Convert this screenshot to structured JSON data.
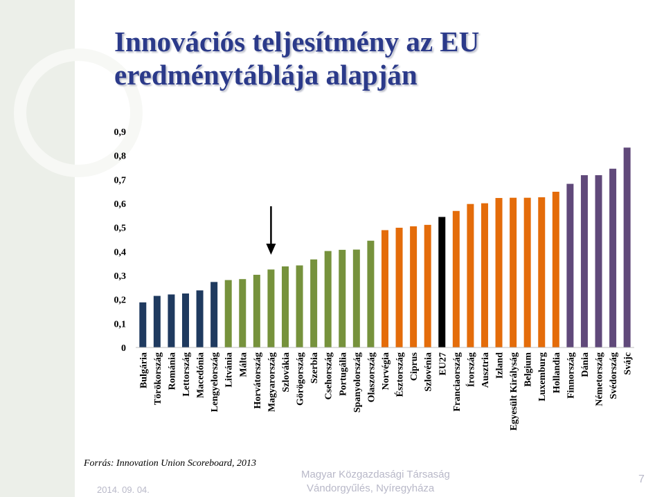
{
  "title": {
    "line1": "Innovációs teljesítmény az EU",
    "line2": "eredménytáblája alapján"
  },
  "source": "Forrás: Innovation Union Scoreboard, 2013",
  "footer": {
    "date": "2014. 09. 04.",
    "org_line1": "Magyar Közgazdasági Társaság",
    "org_line2": "Vándorgyűlés, Nyíregyháza",
    "page_number": "7"
  },
  "colors": {
    "modest": "#1f3a5f",
    "moderate": "#76923c",
    "follower": "#e46c0a",
    "leader": "#60497a",
    "eu27": "#000000",
    "arrow": "#000000"
  },
  "chart_data": {
    "type": "bar",
    "title": "",
    "xlabel": "",
    "ylabel": "",
    "ylim": [
      0,
      0.9
    ],
    "yticks": [
      "0",
      "0,1",
      "0,2",
      "0,3",
      "0,4",
      "0,5",
      "0,6",
      "0,7",
      "0,8",
      "0,9"
    ],
    "grid": false,
    "arrow_marker": "Magyarország",
    "categories": [
      "Bulgária",
      "Törökország",
      "Románia",
      "Lettország",
      "Macedónia",
      "Lengyelország",
      "Litvánia",
      "Málta",
      "Horvátország",
      "Magyarország",
      "Szlovákia",
      "Görögország",
      "Szerbia",
      "Csehország",
      "Portugália",
      "Spanyolország",
      "Olaszország",
      "Norvégia",
      "Észtország",
      "Ciprus",
      "Szlovénia",
      "EU27",
      "Franciaország",
      "Írország",
      "Ausztria",
      "Izland",
      "Egyesült Királyság",
      "Belgium",
      "Luxemburg",
      "Hollandia",
      "Finnország",
      "Dánia",
      "Németország",
      "Svédország",
      "Svájc"
    ],
    "values": [
      0.188,
      0.215,
      0.221,
      0.225,
      0.238,
      0.273,
      0.281,
      0.285,
      0.303,
      0.325,
      0.338,
      0.342,
      0.367,
      0.402,
      0.407,
      0.408,
      0.445,
      0.489,
      0.499,
      0.505,
      0.511,
      0.544,
      0.569,
      0.598,
      0.601,
      0.623,
      0.624,
      0.624,
      0.626,
      0.649,
      0.682,
      0.718,
      0.718,
      0.745,
      0.833
    ],
    "groups": [
      "modest",
      "modest",
      "modest",
      "modest",
      "modest",
      "modest",
      "moderate",
      "moderate",
      "moderate",
      "moderate",
      "moderate",
      "moderate",
      "moderate",
      "moderate",
      "moderate",
      "moderate",
      "moderate",
      "follower",
      "follower",
      "follower",
      "follower",
      "eu27",
      "follower",
      "follower",
      "follower",
      "follower",
      "follower",
      "follower",
      "follower",
      "follower",
      "leader",
      "leader",
      "leader",
      "leader",
      "leader"
    ]
  }
}
